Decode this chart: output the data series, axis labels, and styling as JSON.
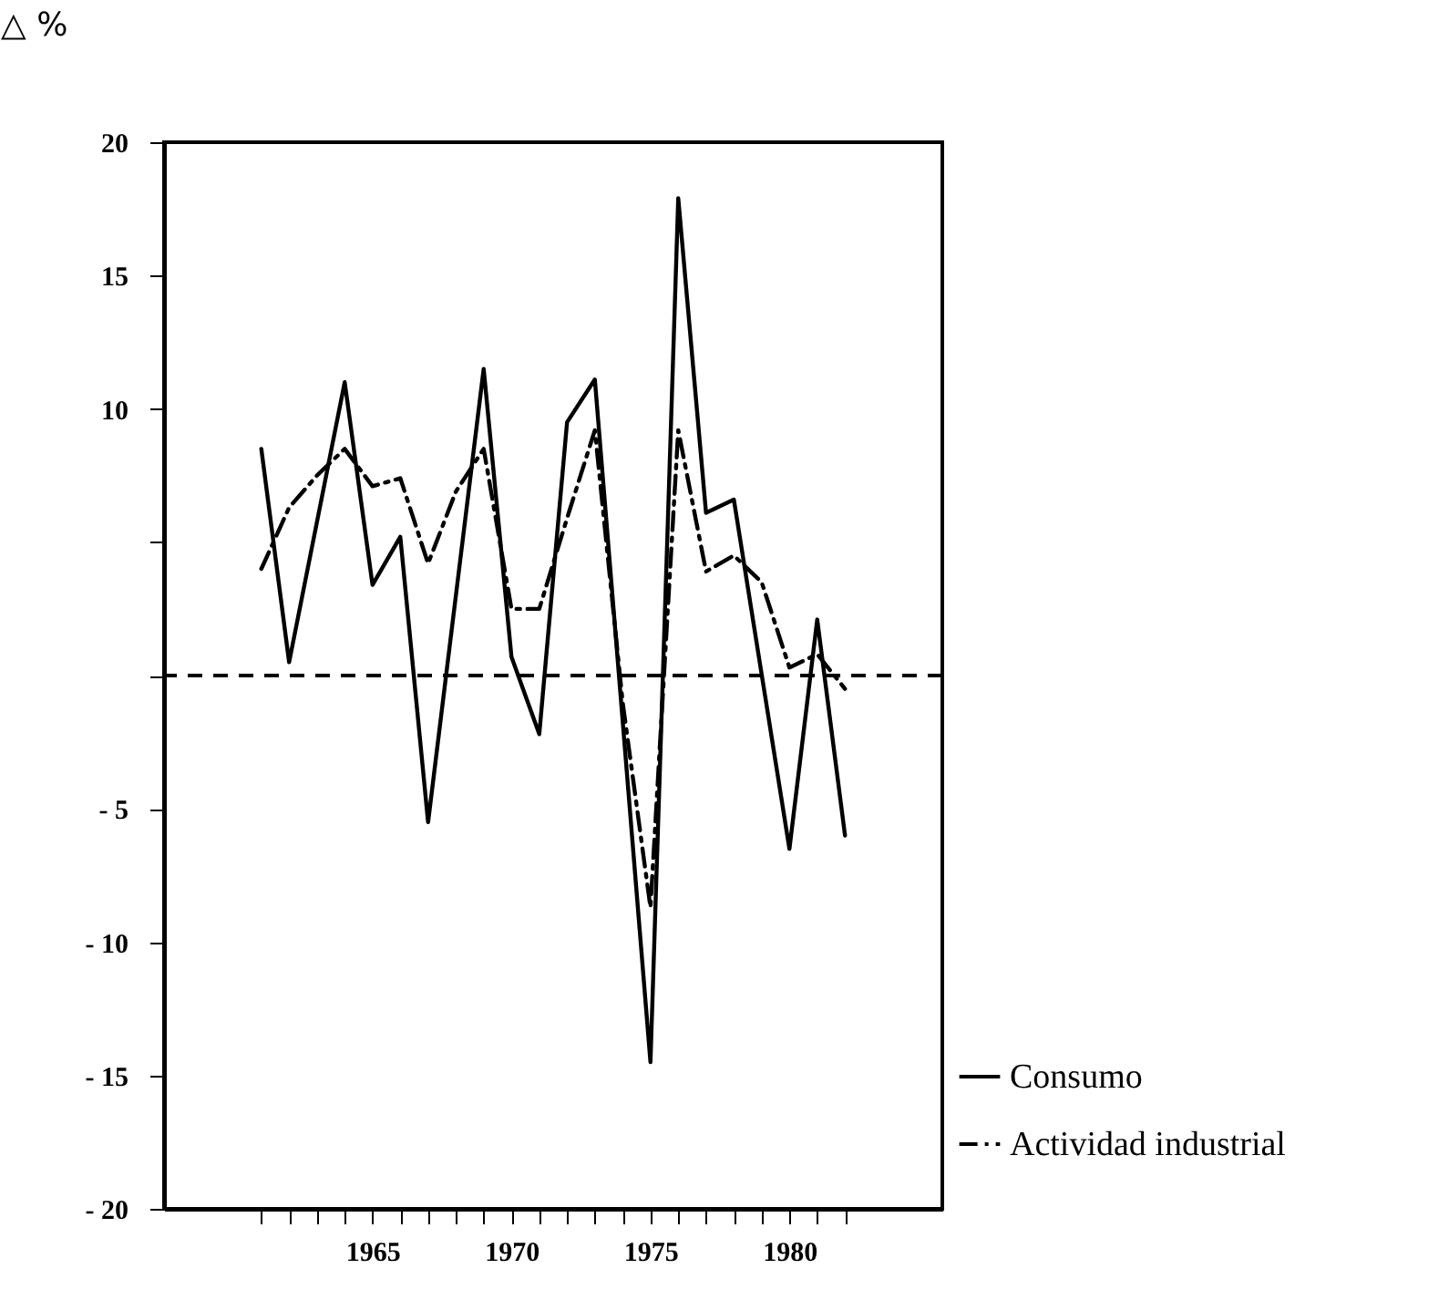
{
  "chart_data": {
    "type": "line",
    "ylabel": "△ %",
    "xlim": [
      1957.5,
      1985.5
    ],
    "xticks": [
      {
        "value": 1961,
        "label": null
      },
      {
        "value": 1962,
        "label": null
      },
      {
        "value": 1963,
        "label": null
      },
      {
        "value": 1964,
        "label": null
      },
      1965,
      {
        "value": 1966,
        "label": null
      },
      {
        "value": 1967,
        "label": null
      },
      {
        "value": 1968,
        "label": null
      },
      {
        "value": 1969,
        "label": null
      },
      1970,
      {
        "value": 1971,
        "label": null
      },
      {
        "value": 1972,
        "label": null
      },
      {
        "value": 1973,
        "label": null
      },
      {
        "value": 1974,
        "label": null
      },
      1975,
      {
        "value": 1976,
        "label": null
      },
      {
        "value": 1977,
        "label": null
      },
      {
        "value": 1978,
        "label": null
      },
      {
        "value": 1979,
        "label": null
      },
      1980,
      {
        "value": 1981,
        "label": null
      },
      {
        "value": 1982,
        "label": null
      }
    ],
    "ylim": [
      -20,
      20
    ],
    "yticks": [
      20,
      15,
      10,
      {
        "value": 5,
        "label": null
      },
      {
        "value": 0,
        "label": null
      },
      {
        "value": -5,
        "label": "- 5"
      },
      {
        "value": -10,
        "label": "- 10"
      },
      {
        "value": -15,
        "label": "- 15"
      },
      {
        "value": -20,
        "label": "- 20"
      }
    ],
    "series": [
      {
        "name": "Consumo",
        "color": "#000000",
        "line_style": "solid",
        "x": [
          1961,
          1962,
          1964,
          1965,
          1966,
          1967,
          1969,
          1970,
          1971,
          1972,
          1973,
          1975,
          1976,
          1977,
          1978,
          1980,
          1981,
          1982
        ],
        "values": [
          8.5,
          0.5,
          11.0,
          3.4,
          5.2,
          -5.5,
          11.5,
          0.7,
          -2.2,
          9.5,
          11.1,
          -14.5,
          17.9,
          6.1,
          6.6,
          -6.5,
          2.1,
          -6.0
        ]
      },
      {
        "name": "Actividad industrial",
        "color": "#000000",
        "line_style": "dashdot",
        "x": [
          1961,
          1962,
          1963,
          1964,
          1965,
          1966,
          1967,
          1968,
          1969,
          1970,
          1971,
          1972,
          1973,
          1974,
          1975,
          1976,
          1977,
          1978,
          1979,
          1980,
          1981,
          1982
        ],
        "values": [
          4.0,
          6.3,
          7.5,
          8.5,
          7.1,
          7.4,
          4.2,
          6.9,
          8.5,
          2.5,
          2.5,
          5.9,
          9.2,
          -1.0,
          -8.7,
          9.2,
          3.9,
          4.5,
          3.5,
          0.3,
          0.8,
          -0.5
        ]
      }
    ],
    "ref_lines": [
      {
        "axis": "y",
        "value": 0,
        "color": "#000000",
        "line_style": "dashed"
      }
    ],
    "grid": false,
    "legend": "bottom right",
    "marker": "none"
  }
}
